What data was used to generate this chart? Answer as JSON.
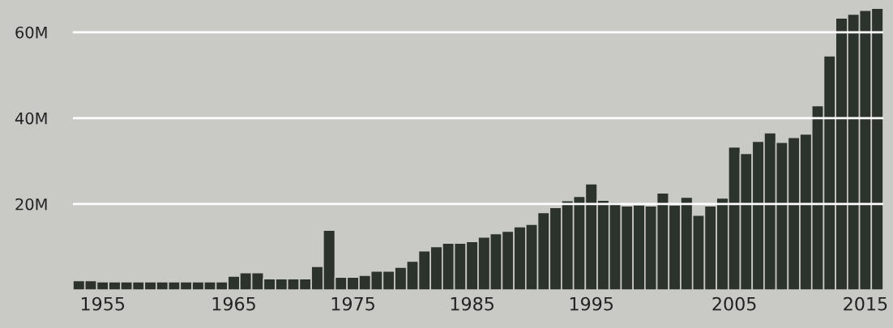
{
  "chart_data": {
    "type": "bar",
    "categories": [
      null,
      null,
      "1955",
      null,
      null,
      null,
      null,
      null,
      null,
      null,
      null,
      null,
      null,
      "1965",
      null,
      null,
      null,
      null,
      null,
      null,
      null,
      null,
      null,
      "1975",
      null,
      null,
      null,
      null,
      null,
      null,
      null,
      null,
      null,
      "1985",
      null,
      null,
      null,
      null,
      null,
      null,
      null,
      null,
      null,
      "1995",
      null,
      null,
      null,
      null,
      null,
      null,
      null,
      null,
      null,
      null,
      null,
      "2005",
      null,
      null,
      null,
      null,
      null,
      null,
      null,
      null,
      null,
      null,
      "2015",
      null
    ],
    "values": [
      2.2,
      2.2,
      1.9,
      1.9,
      1.9,
      1.9,
      1.9,
      1.9,
      1.9,
      1.9,
      1.9,
      1.9,
      1.9,
      3.2,
      4.0,
      4.0,
      2.6,
      2.6,
      2.6,
      2.6,
      5.5,
      13.9,
      3.0,
      3.0,
      3.4,
      4.4,
      4.4,
      5.3,
      6.7,
      9.1,
      10.1,
      10.9,
      10.9,
      11.3,
      12.3,
      13.1,
      13.7,
      14.7,
      15.3,
      18.0,
      19.2,
      20.8,
      21.8,
      24.7,
      20.9,
      20.4,
      19.6,
      19.8,
      19.6,
      22.6,
      19.8,
      21.6,
      17.4,
      19.6,
      21.4,
      33.3,
      31.8,
      34.6,
      36.6,
      34.4,
      35.5,
      36.3,
      42.9,
      54.5,
      63.3,
      64.2,
      65.1,
      65.6
    ],
    "color": "#2c332d",
    "ylim": [
      0,
      67.5
    ],
    "yticks": [
      {
        "value": 20,
        "label": "20M"
      },
      {
        "value": 40,
        "label": "40M"
      },
      {
        "value": 60,
        "label": "60M"
      }
    ],
    "grid": "y"
  }
}
